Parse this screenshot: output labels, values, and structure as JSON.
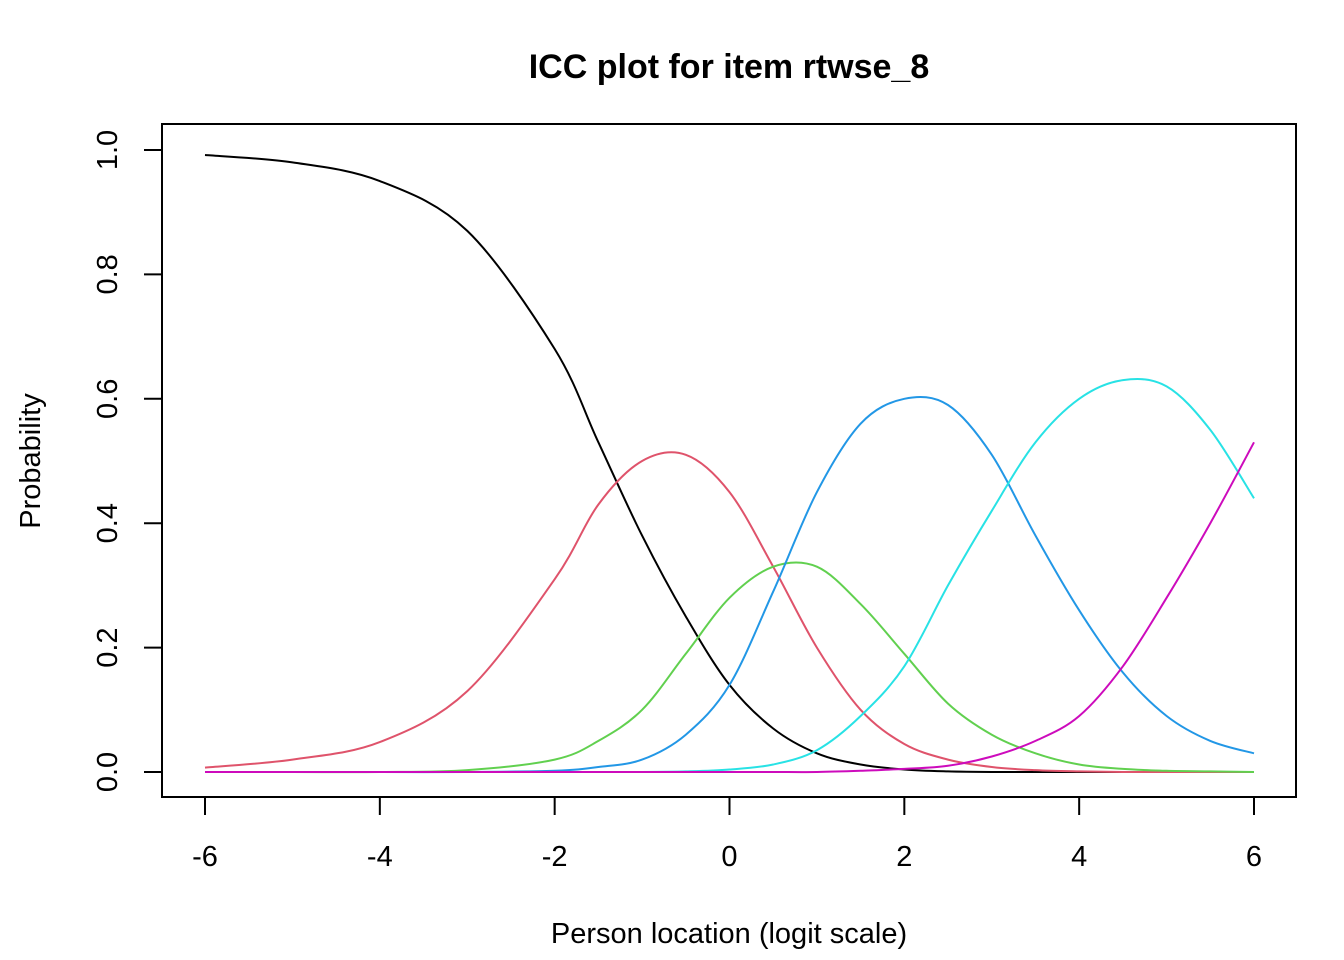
{
  "chart_data": {
    "type": "line",
    "title": "ICC plot for item rtwse_8",
    "xlabel": "Person location (logit scale)",
    "ylabel": "Probability",
    "xlim": [
      -6,
      6
    ],
    "ylim": [
      0,
      1
    ],
    "x_ticks": [
      "-6",
      "-4",
      "-2",
      "0",
      "2",
      "4",
      "6"
    ],
    "y_ticks": [
      "0.0",
      "0.2",
      "0.4",
      "0.6",
      "0.8",
      "1.0"
    ],
    "grid": false,
    "legend": "none",
    "x": [
      -6,
      -5,
      -4,
      -3,
      -2,
      -1.5,
      -1,
      -0.5,
      0,
      0.5,
      1,
      1.5,
      2,
      2.5,
      3,
      3.5,
      4,
      4.5,
      5,
      5.5,
      6
    ],
    "series": [
      {
        "color": "#000000",
        "values": [
          0.992,
          0.98,
          0.95,
          0.87,
          0.68,
          0.53,
          0.38,
          0.25,
          0.14,
          0.07,
          0.03,
          0.012,
          0.004,
          0.001,
          0.0,
          0.0,
          0.0,
          0.0,
          0.0,
          0.0,
          0.0
        ]
      },
      {
        "color": "#DF536B",
        "values": [
          0.007,
          0.02,
          0.048,
          0.13,
          0.31,
          0.43,
          0.5,
          0.51,
          0.45,
          0.33,
          0.2,
          0.1,
          0.045,
          0.02,
          0.008,
          0.003,
          0.001,
          0.0,
          0.0,
          0.0,
          0.0
        ]
      },
      {
        "color": "#61D04F",
        "values": [
          0.0,
          0.0,
          0.0,
          0.003,
          0.02,
          0.05,
          0.1,
          0.19,
          0.28,
          0.33,
          0.33,
          0.27,
          0.19,
          0.11,
          0.06,
          0.03,
          0.012,
          0.005,
          0.002,
          0.001,
          0.0
        ]
      },
      {
        "color": "#2297E6",
        "values": [
          0.0,
          0.0,
          0.0,
          0.0,
          0.002,
          0.008,
          0.02,
          0.06,
          0.14,
          0.29,
          0.45,
          0.56,
          0.6,
          0.59,
          0.51,
          0.38,
          0.26,
          0.16,
          0.09,
          0.05,
          0.03
        ]
      },
      {
        "color": "#28E2E5",
        "values": [
          0.0,
          0.0,
          0.0,
          0.0,
          0.0,
          0.0,
          0.0,
          0.001,
          0.004,
          0.012,
          0.035,
          0.09,
          0.17,
          0.3,
          0.42,
          0.53,
          0.6,
          0.63,
          0.62,
          0.55,
          0.44
        ]
      },
      {
        "color": "#CD0BBC",
        "values": [
          0.0,
          0.0,
          0.0,
          0.0,
          0.0,
          0.0,
          0.0,
          0.0,
          0.0,
          0.0,
          0.0,
          0.002,
          0.005,
          0.01,
          0.025,
          0.05,
          0.09,
          0.17,
          0.28,
          0.4,
          0.53
        ]
      }
    ]
  }
}
